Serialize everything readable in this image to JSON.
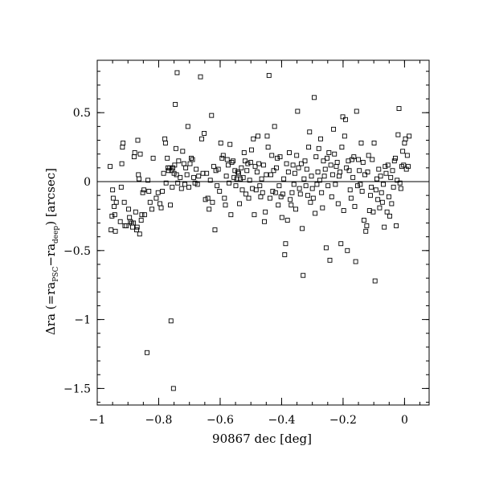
{
  "chart_data": {
    "type": "scatter",
    "xlabel": "90867 dec [deg]",
    "ylabel": {
      "prefix": "Δra (=ra",
      "sub1": "PSC",
      "mid": "−ra",
      "sub2": "deep",
      "suffix": ") [arcsec]"
    },
    "xlim": [
      -1.0,
      0.08
    ],
    "ylim": [
      -1.62,
      0.88
    ],
    "x_ticks": [
      -1,
      -0.8,
      -0.6,
      -0.4,
      -0.2,
      0
    ],
    "x_tick_labels": [
      "−1",
      "−0.8",
      "−0.6",
      "−0.4",
      "−0.2",
      "0"
    ],
    "y_ticks": [
      -1.5,
      -1,
      -0.5,
      0,
      0.5
    ],
    "y_tick_labels": [
      "−1.5",
      "−1",
      "−0.5",
      "0",
      "0.5"
    ],
    "x_minor_step": 0.05,
    "y_minor_step": 0.1,
    "reference_line_y": 0,
    "grid": false,
    "marker": "open-square",
    "points": [
      [
        -0.958,
        0.11
      ],
      [
        -0.955,
        -0.35
      ],
      [
        -0.952,
        -0.25
      ],
      [
        -0.95,
        -0.06
      ],
      [
        -0.948,
        -0.12
      ],
      [
        -0.945,
        -0.18
      ],
      [
        -0.943,
        -0.24
      ],
      [
        -0.941,
        -0.36
      ],
      [
        -0.938,
        -0.15
      ],
      [
        -0.925,
        -0.29
      ],
      [
        -0.922,
        -0.04
      ],
      [
        -0.92,
        0.13
      ],
      [
        -0.918,
        0.25
      ],
      [
        -0.916,
        0.28
      ],
      [
        -0.912,
        -0.15
      ],
      [
        -0.91,
        -0.32
      ],
      [
        -0.905,
        -0.32
      ],
      [
        -0.898,
        -0.2
      ],
      [
        -0.895,
        -0.26
      ],
      [
        -0.892,
        -0.29
      ],
      [
        -0.888,
        -0.3
      ],
      [
        -0.885,
        -0.33
      ],
      [
        -0.882,
        -0.3
      ],
      [
        -0.88,
        0.18
      ],
      [
        -0.878,
        0.21
      ],
      [
        -0.875,
        -0.22
      ],
      [
        -0.872,
        -0.35
      ],
      [
        -0.87,
        -0.33
      ],
      [
        -0.868,
        0.3
      ],
      [
        -0.866,
        0.05
      ],
      [
        -0.864,
        0.02
      ],
      [
        -0.862,
        -0.38
      ],
      [
        -0.86,
        0.2
      ],
      [
        -0.857,
        -0.28
      ],
      [
        -0.855,
        -0.24
      ],
      [
        -0.852,
        -0.08
      ],
      [
        -0.848,
        -0.06
      ],
      [
        -0.846,
        -0.24
      ],
      [
        -0.838,
        -1.24
      ],
      [
        -0.835,
        0.01
      ],
      [
        -0.832,
        -0.07
      ],
      [
        -0.828,
        -0.15
      ],
      [
        -0.822,
        -0.2
      ],
      [
        -0.818,
        0.17
      ],
      [
        -0.808,
        -0.12
      ],
      [
        -0.802,
        -0.08
      ],
      [
        -0.796,
        -0.16
      ],
      [
        -0.792,
        -0.19
      ],
      [
        -0.788,
        -0.07
      ],
      [
        -0.784,
        0.06
      ],
      [
        -0.78,
        0.31
      ],
      [
        -0.778,
        0.28
      ],
      [
        -0.776,
        -0.01
      ],
      [
        -0.772,
        0.17
      ],
      [
        -0.77,
        0.1
      ],
      [
        -0.768,
        0.08
      ],
      [
        -0.764,
        0.1
      ],
      [
        -0.762,
        -0.17
      ],
      [
        -0.76,
        -1.01
      ],
      [
        -0.758,
        0.08
      ],
      [
        -0.756,
        -0.04
      ],
      [
        -0.754,
        0.1
      ],
      [
        -0.752,
        -1.5
      ],
      [
        -0.75,
        0.06
      ],
      [
        -0.748,
        0.12
      ],
      [
        -0.746,
        0.56
      ],
      [
        -0.744,
        0.24
      ],
      [
        -0.742,
        0.05
      ],
      [
        -0.74,
        0.79
      ],
      [
        -0.738,
        -0.01
      ],
      [
        -0.735,
        0.15
      ],
      [
        -0.73,
        0.03
      ],
      [
        -0.726,
        -0.05
      ],
      [
        -0.722,
        0.22
      ],
      [
        -0.718,
        0.13
      ],
      [
        -0.715,
        -0.02
      ],
      [
        -0.712,
        0.1
      ],
      [
        -0.708,
        0.05
      ],
      [
        -0.705,
        0.4
      ],
      [
        -0.702,
        -0.04
      ],
      [
        -0.698,
        0.13
      ],
      [
        -0.694,
        0.17
      ],
      [
        -0.69,
        0.16
      ],
      [
        -0.686,
        0.03
      ],
      [
        -0.682,
        -0.01
      ],
      [
        -0.678,
        0.09
      ],
      [
        -0.674,
        -0.02
      ],
      [
        -0.67,
        0.04
      ],
      [
        -0.664,
        0.76
      ],
      [
        -0.66,
        0.31
      ],
      [
        -0.656,
        0.06
      ],
      [
        -0.652,
        0.35
      ],
      [
        -0.648,
        -0.13
      ],
      [
        -0.644,
        0.06
      ],
      [
        -0.64,
        -0.12
      ],
      [
        -0.636,
        -0.2
      ],
      [
        -0.632,
        0.01
      ],
      [
        -0.628,
        0.48
      ],
      [
        -0.625,
        -0.15
      ],
      [
        -0.621,
        0.11
      ],
      [
        -0.617,
        -0.35
      ],
      [
        -0.614,
        0.08
      ],
      [
        -0.61,
        -0.03
      ],
      [
        -0.606,
        0.09
      ],
      [
        -0.602,
        -0.07
      ],
      [
        -0.598,
        0.28
      ],
      [
        -0.594,
        0.17
      ],
      [
        -0.59,
        0.19
      ],
      [
        -0.586,
        -0.12
      ],
      [
        -0.583,
        -0.17
      ],
      [
        -0.58,
        0.04
      ],
      [
        -0.577,
        0.16
      ],
      [
        -0.574,
        0.12
      ],
      [
        -0.571,
        -0.01
      ],
      [
        -0.568,
        0.27
      ],
      [
        -0.565,
        -0.24
      ],
      [
        -0.562,
        0.14
      ],
      [
        -0.558,
        0.15
      ],
      [
        -0.555,
        0.03
      ],
      [
        -0.552,
        0.08
      ],
      [
        -0.549,
        -0.03
      ],
      [
        -0.546,
        0.02
      ],
      [
        -0.543,
        0.07
      ],
      [
        -0.54,
        0.06
      ],
      [
        -0.537,
        -0.16
      ],
      [
        -0.534,
        0.02
      ],
      [
        -0.531,
        0.1
      ],
      [
        -0.528,
        -0.06
      ],
      [
        -0.525,
        0.03
      ],
      [
        -0.522,
        0.21
      ],
      [
        -0.519,
        0.15
      ],
      [
        -0.516,
        -0.09
      ],
      [
        -0.513,
        0.08
      ],
      [
        -0.51,
        0.13
      ],
      [
        -0.507,
        -0.12
      ],
      [
        -0.504,
        0.01
      ],
      [
        -0.501,
        0.14
      ],
      [
        -0.498,
        0.23
      ],
      [
        -0.495,
        -0.05
      ],
      [
        -0.492,
        0.31
      ],
      [
        -0.489,
        -0.24
      ],
      [
        -0.486,
        0.11
      ],
      [
        -0.483,
        -0.06
      ],
      [
        -0.48,
        0.07
      ],
      [
        -0.477,
        0.33
      ],
      [
        -0.474,
        0.13
      ],
      [
        -0.471,
        -0.03
      ],
      [
        -0.468,
        -0.11
      ],
      [
        -0.465,
        0.02
      ],
      [
        -0.462,
        -0.08
      ],
      [
        -0.459,
        0.12
      ],
      [
        -0.456,
        -0.29
      ],
      [
        -0.453,
        -0.22
      ],
      [
        -0.45,
        0.05
      ],
      [
        -0.447,
        0.33
      ],
      [
        -0.444,
        0.25
      ],
      [
        -0.441,
        0.77
      ],
      [
        -0.438,
        -0.12
      ],
      [
        -0.435,
        0.05
      ],
      [
        -0.432,
        0.19
      ],
      [
        -0.429,
        -0.07
      ],
      [
        -0.426,
        0.08
      ],
      [
        -0.423,
        0.4
      ],
      [
        -0.42,
        -0.08
      ],
      [
        -0.417,
        0.1
      ],
      [
        -0.414,
        0.17
      ],
      [
        -0.411,
        -0.17
      ],
      [
        -0.408,
        -0.03
      ],
      [
        -0.405,
        0.18
      ],
      [
        -0.402,
        -0.11
      ],
      [
        -0.399,
        -0.26
      ],
      [
        -0.396,
        -0.09
      ],
      [
        -0.393,
        0.02
      ],
      [
        -0.39,
        -0.53
      ],
      [
        -0.387,
        -0.45
      ],
      [
        -0.384,
        0.13
      ],
      [
        -0.381,
        -0.28
      ],
      [
        -0.378,
        0.07
      ],
      [
        -0.375,
        0.21
      ],
      [
        -0.372,
        -0.13
      ],
      [
        -0.369,
        -0.17
      ],
      [
        -0.366,
        -0.08
      ],
      [
        -0.363,
        0.12
      ],
      [
        -0.36,
        -0.02
      ],
      [
        -0.357,
        0.06
      ],
      [
        -0.354,
        -0.2
      ],
      [
        -0.351,
        0.19
      ],
      [
        -0.348,
        0.51
      ],
      [
        -0.345,
        0.1
      ],
      [
        -0.342,
        -0.05
      ],
      [
        -0.339,
        -0.09
      ],
      [
        -0.336,
        0.13
      ],
      [
        -0.333,
        -0.34
      ],
      [
        -0.33,
        -0.68
      ],
      [
        -0.327,
        0.02
      ],
      [
        -0.324,
        0.15
      ],
      [
        -0.321,
        -0.03
      ],
      [
        -0.318,
        0.09
      ],
      [
        -0.315,
        -0.1
      ],
      [
        -0.312,
        0.25
      ],
      [
        -0.309,
        0.36
      ],
      [
        -0.306,
        -0.15
      ],
      [
        -0.303,
        0.04
      ],
      [
        -0.3,
        -0.05
      ],
      [
        -0.297,
        -0.12
      ],
      [
        -0.294,
        0.61
      ],
      [
        -0.291,
        -0.23
      ],
      [
        -0.288,
        0.18
      ],
      [
        -0.285,
        -0.02
      ],
      [
        -0.282,
        0.07
      ],
      [
        -0.279,
        0.24
      ],
      [
        -0.276,
        0.01
      ],
      [
        -0.273,
        0.31
      ],
      [
        -0.27,
        -0.08
      ],
      [
        -0.267,
        -0.19
      ],
      [
        -0.264,
        0.15
      ],
      [
        -0.261,
        0.04
      ],
      [
        -0.258,
        0.09
      ],
      [
        -0.255,
        -0.48
      ],
      [
        -0.252,
        0.17
      ],
      [
        -0.249,
        -0.03
      ],
      [
        -0.246,
        0.21
      ],
      [
        -0.243,
        -0.57
      ],
      [
        -0.24,
        0.12
      ],
      [
        -0.237,
        -0.11
      ],
      [
        -0.234,
        0.05
      ],
      [
        -0.231,
        0.38
      ],
      [
        -0.228,
        0.2
      ],
      [
        -0.225,
        -0.02
      ],
      [
        -0.222,
        0.11
      ],
      [
        -0.219,
        0.14
      ],
      [
        -0.216,
        -0.16
      ],
      [
        -0.213,
        0.04
      ],
      [
        -0.21,
        0.07
      ],
      [
        -0.207,
        -0.45
      ],
      [
        -0.204,
        0.25
      ],
      [
        -0.201,
        0.47
      ],
      [
        -0.198,
        -0.21
      ],
      [
        -0.195,
        0.33
      ],
      [
        -0.192,
        0.45
      ],
      [
        -0.189,
        0.1
      ],
      [
        -0.186,
        -0.5
      ],
      [
        -0.183,
        0.15
      ],
      [
        -0.18,
        0.08
      ],
      [
        -0.177,
        -0.06
      ],
      [
        -0.174,
        -0.12
      ],
      [
        -0.171,
        0.16
      ],
      [
        -0.168,
        0.03
      ],
      [
        -0.165,
        0.18
      ],
      [
        -0.162,
        -0.18
      ],
      [
        -0.159,
        -0.58
      ],
      [
        -0.156,
        0.51
      ],
      [
        -0.153,
        -0.03
      ],
      [
        -0.15,
        0.16
      ],
      [
        -0.147,
        0.08
      ],
      [
        -0.144,
        -0.02
      ],
      [
        -0.141,
        0.28
      ],
      [
        -0.138,
        -0.07
      ],
      [
        -0.135,
        0.14
      ],
      [
        -0.132,
        -0.28
      ],
      [
        -0.129,
        0.05
      ],
      [
        -0.126,
        -0.36
      ],
      [
        -0.123,
        -0.32
      ],
      [
        -0.12,
        0.07
      ],
      [
        -0.117,
        0.19
      ],
      [
        -0.114,
        -0.21
      ],
      [
        -0.111,
        -0.1
      ],
      [
        -0.108,
        -0.04
      ],
      [
        -0.105,
        0.16
      ],
      [
        -0.102,
        -0.22
      ],
      [
        -0.099,
        0.28
      ],
      [
        -0.096,
        -0.72
      ],
      [
        -0.093,
        -0.06
      ],
      [
        -0.09,
        0.02
      ],
      [
        -0.087,
        -0.13
      ],
      [
        -0.084,
        0.09
      ],
      [
        -0.081,
        -0.19
      ],
      [
        -0.078,
        0.04
      ],
      [
        -0.075,
        -0.08
      ],
      [
        -0.072,
        -0.15
      ],
      [
        -0.069,
        -0.02
      ],
      [
        -0.066,
        -0.33
      ],
      [
        -0.063,
        0.11
      ],
      [
        -0.06,
        0.06
      ],
      [
        -0.057,
        -0.22
      ],
      [
        -0.054,
        0.12
      ],
      [
        -0.051,
        -0.11
      ],
      [
        -0.048,
        -0.25
      ],
      [
        -0.045,
        0.03
      ],
      [
        -0.042,
        -0.16
      ],
      [
        -0.039,
        0.08
      ],
      [
        -0.036,
        -0.04
      ],
      [
        -0.033,
        0.15
      ],
      [
        -0.03,
        0.17
      ],
      [
        -0.027,
        -0.32
      ],
      [
        -0.024,
        0.01
      ],
      [
        -0.021,
        0.34
      ],
      [
        -0.018,
        0.53
      ],
      [
        -0.015,
        -0.01
      ],
      [
        -0.012,
        -0.05
      ],
      [
        -0.009,
        0.11
      ],
      [
        -0.006,
        0.22
      ],
      [
        -0.003,
        0.12
      ],
      [
        0.0,
        0.28
      ],
      [
        0.003,
        0.31
      ],
      [
        0.006,
        0.09
      ],
      [
        0.009,
        0.19
      ],
      [
        0.012,
        0.11
      ],
      [
        0.015,
        0.33
      ]
    ]
  }
}
